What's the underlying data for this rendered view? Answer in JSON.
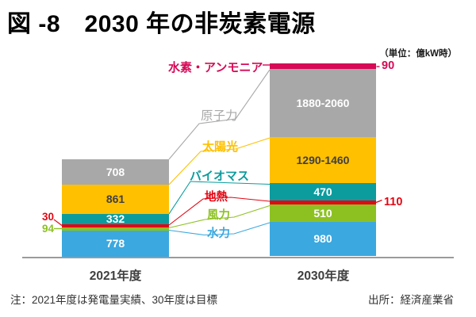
{
  "title": "図 -8　2030 年の非炭素電源",
  "unit_label": "（単位：億kW時）",
  "note": "注：2021年度は発電量実績、30年度は目標",
  "source": "出所：経済産業省",
  "colors": {
    "hydrogen_ammonia": "#d60a56",
    "nuclear": "#a8a8a8",
    "solar": "#ffc000",
    "biomass": "#0c9c9e",
    "geothermal": "#e30613",
    "wind": "#8dc122",
    "hydro": "#3ba8df",
    "text_dark": "#3f3f3f",
    "axis": "#9b9b9b"
  },
  "labels": {
    "hydrogen_ammonia": "水素・アンモニア",
    "nuclear": "原子力",
    "solar": "太陽光",
    "biomass": "バイオマス",
    "geothermal": "地熱",
    "wind": "風力",
    "hydro": "水力"
  },
  "chart_data": {
    "type": "bar",
    "stacked": true,
    "unit": "億kW時",
    "categories": [
      "2021年度",
      "2030年度"
    ],
    "series": [
      {
        "name": "水素・アンモニア",
        "key": "hydrogen_ammonia",
        "values": [
          null,
          "90"
        ]
      },
      {
        "name": "原子力",
        "key": "nuclear",
        "values": [
          "708",
          "1880-2060"
        ]
      },
      {
        "name": "太陽光",
        "key": "solar",
        "values": [
          "861",
          "1290-1460"
        ]
      },
      {
        "name": "バイオマス",
        "key": "biomass",
        "values": [
          "332",
          "470"
        ]
      },
      {
        "name": "地熱",
        "key": "geothermal",
        "values": [
          "30",
          "110"
        ]
      },
      {
        "name": "風力",
        "key": "wind",
        "values": [
          "94",
          "510"
        ]
      },
      {
        "name": "水力",
        "key": "hydro",
        "values": [
          "778",
          "980"
        ]
      }
    ],
    "legend_position": "callout-labels-between-bars",
    "grid": false
  },
  "bars_render": [
    {
      "category_index": 0,
      "segments": [
        {
          "key": "nuclear",
          "text": "708",
          "tone": "light"
        },
        {
          "key": "solar",
          "text": "861",
          "tone": "dark"
        },
        {
          "key": "biomass",
          "text": "332",
          "tone": "light"
        },
        {
          "key": "geothermal",
          "text": "",
          "tone": "light"
        },
        {
          "key": "wind",
          "text": "",
          "tone": "light"
        },
        {
          "key": "hydro",
          "text": "778",
          "tone": "light"
        }
      ]
    },
    {
      "category_index": 1,
      "segments": [
        {
          "key": "hydrogen_ammonia",
          "text": "",
          "tone": "light"
        },
        {
          "key": "nuclear",
          "text": "1880-2060",
          "tone": "light"
        },
        {
          "key": "solar",
          "text": "1290-1460",
          "tone": "dark"
        },
        {
          "key": "biomass",
          "text": "470",
          "tone": "light"
        },
        {
          "key": "geothermal",
          "text": "",
          "tone": "light"
        },
        {
          "key": "wind",
          "text": "510",
          "tone": "light"
        },
        {
          "key": "hydro",
          "text": "980",
          "tone": "light"
        }
      ]
    }
  ]
}
